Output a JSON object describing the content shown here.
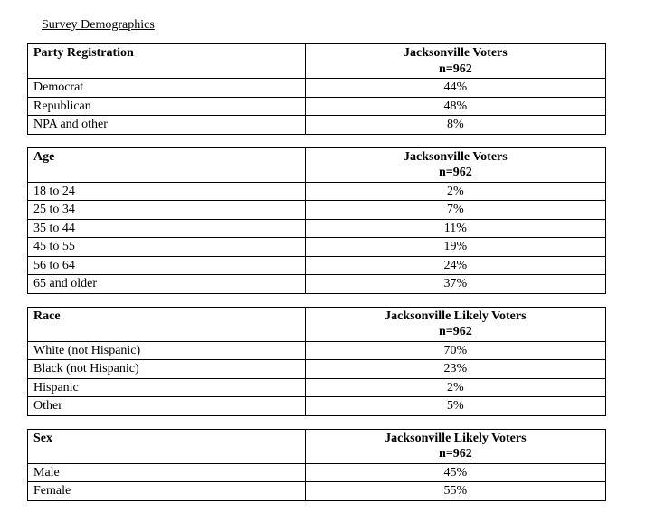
{
  "title": "Survey Demographics",
  "tables": [
    {
      "leftHeader": "Party Registration",
      "rightHeader": "Jacksonville Voters",
      "rightSub": "n=962",
      "rows": [
        {
          "label": "Democrat",
          "value": "44%"
        },
        {
          "label": "Republican",
          "value": "48%"
        },
        {
          "label": "NPA and other",
          "value": "8%"
        }
      ]
    },
    {
      "leftHeader": "Age",
      "rightHeader": "Jacksonville Voters",
      "rightSub": "n=962",
      "rows": [
        {
          "label": "18 to 24",
          "value": "2%"
        },
        {
          "label": "25 to 34",
          "value": "7%"
        },
        {
          "label": "35 to 44",
          "value": "11%"
        },
        {
          "label": "45 to 55",
          "value": "19%"
        },
        {
          "label": "56 to 64",
          "value": "24%"
        },
        {
          "label": "65 and older",
          "value": "37%"
        }
      ]
    },
    {
      "leftHeader": "Race",
      "rightHeader": "Jacksonville Likely Voters",
      "rightSub": "n=962",
      "rows": [
        {
          "label": "White (not Hispanic)",
          "value": "70%"
        },
        {
          "label": "Black (not Hispanic)",
          "value": "23%"
        },
        {
          "label": "Hispanic",
          "value": "2%"
        },
        {
          "label": "Other",
          "value": "5%"
        }
      ]
    },
    {
      "leftHeader": "Sex",
      "rightHeader": "Jacksonville Likely Voters",
      "rightSub": "n=962",
      "rows": [
        {
          "label": "Male",
          "value": "45%"
        },
        {
          "label": "Female",
          "value": "55%"
        }
      ]
    }
  ]
}
